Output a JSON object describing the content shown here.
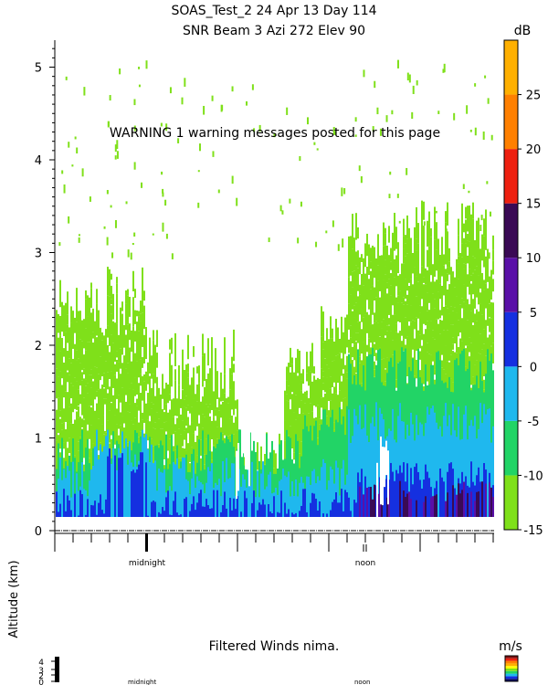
{
  "header": {
    "title_line1": "SOAS_Test_2  24 Apr 13 Day 114",
    "title_line2": "SNR Beam 3 Azi 272 Elev 90",
    "warning": "WARNING  1 warning messages posted for this page"
  },
  "chart_data": [
    {
      "type": "heatmap",
      "title": "SNR Beam 3 Azi 272 Elev 90",
      "ylabel": "Altitude (km)",
      "ylim": [
        0,
        5.3
      ],
      "y_ticks": [
        "0",
        "1",
        "2",
        "3",
        "4",
        "5"
      ],
      "x_markers": [
        "midnight",
        "noon"
      ],
      "colorbar": {
        "unit": "dB",
        "range": [
          -15,
          30
        ],
        "tick_labels": [
          "-15",
          "-10",
          "-5",
          "0",
          "5",
          "10",
          "15",
          "20",
          "25"
        ],
        "bands": [
          {
            "from": -15,
            "to": -10,
            "color": "#7FE01A"
          },
          {
            "from": -10,
            "to": -5,
            "color": "#22D466"
          },
          {
            "from": -5,
            "to": 0,
            "color": "#1FB8EE"
          },
          {
            "from": 0,
            "to": 5,
            "color": "#1530E0"
          },
          {
            "from": 5,
            "to": 10,
            "color": "#5A10A8"
          },
          {
            "from": 10,
            "to": 15,
            "color": "#3A0A55"
          },
          {
            "from": 15,
            "to": 20,
            "color": "#EE2010"
          },
          {
            "from": 20,
            "to": 25,
            "color": "#FF8000"
          },
          {
            "from": 25,
            "to": 30,
            "color": "#FFB000"
          }
        ]
      }
    },
    {
      "type": "heatmap",
      "title": "Filtered Winds nima.",
      "unit": "m/s",
      "y_ticks": [
        "0",
        "2",
        "3",
        "4"
      ],
      "x_markers": [
        "midnight",
        "noon"
      ]
    }
  ]
}
